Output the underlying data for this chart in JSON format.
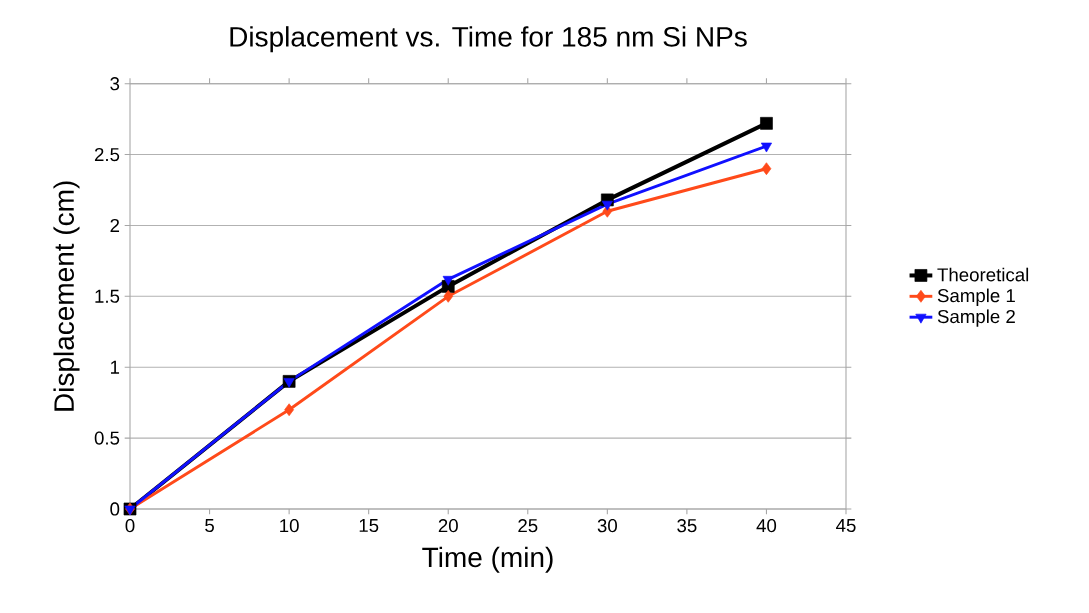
{
  "chart_data": {
    "type": "line",
    "title": "Displacement vs. Time for 185 nm Si NPs",
    "xlabel": "Time (min)",
    "ylabel": "Displacement (cm)",
    "x": [
      0,
      10,
      20,
      30,
      40
    ],
    "series": [
      {
        "name": "Theoretical",
        "color": "#000000",
        "marker": "square",
        "values": [
          0,
          0.9,
          1.57,
          2.18,
          2.72
        ]
      },
      {
        "name": "Sample 1",
        "color": "#ff4a1a",
        "marker": "diamond",
        "values": [
          0,
          0.7,
          1.5,
          2.1,
          2.4
        ]
      },
      {
        "name": "Sample 2",
        "color": "#1010ff",
        "marker": "triangle",
        "values": [
          0,
          0.9,
          1.62,
          2.15,
          2.56
        ]
      }
    ],
    "xlim": [
      0,
      45
    ],
    "xticks": [
      0,
      5,
      10,
      15,
      20,
      25,
      30,
      35,
      40,
      45
    ],
    "ylim": [
      0,
      3
    ],
    "yticks": [
      0,
      0.5,
      1,
      1.5,
      2,
      2.5,
      3
    ],
    "grid": "y",
    "legend": "right",
    "line_style": "solid"
  }
}
